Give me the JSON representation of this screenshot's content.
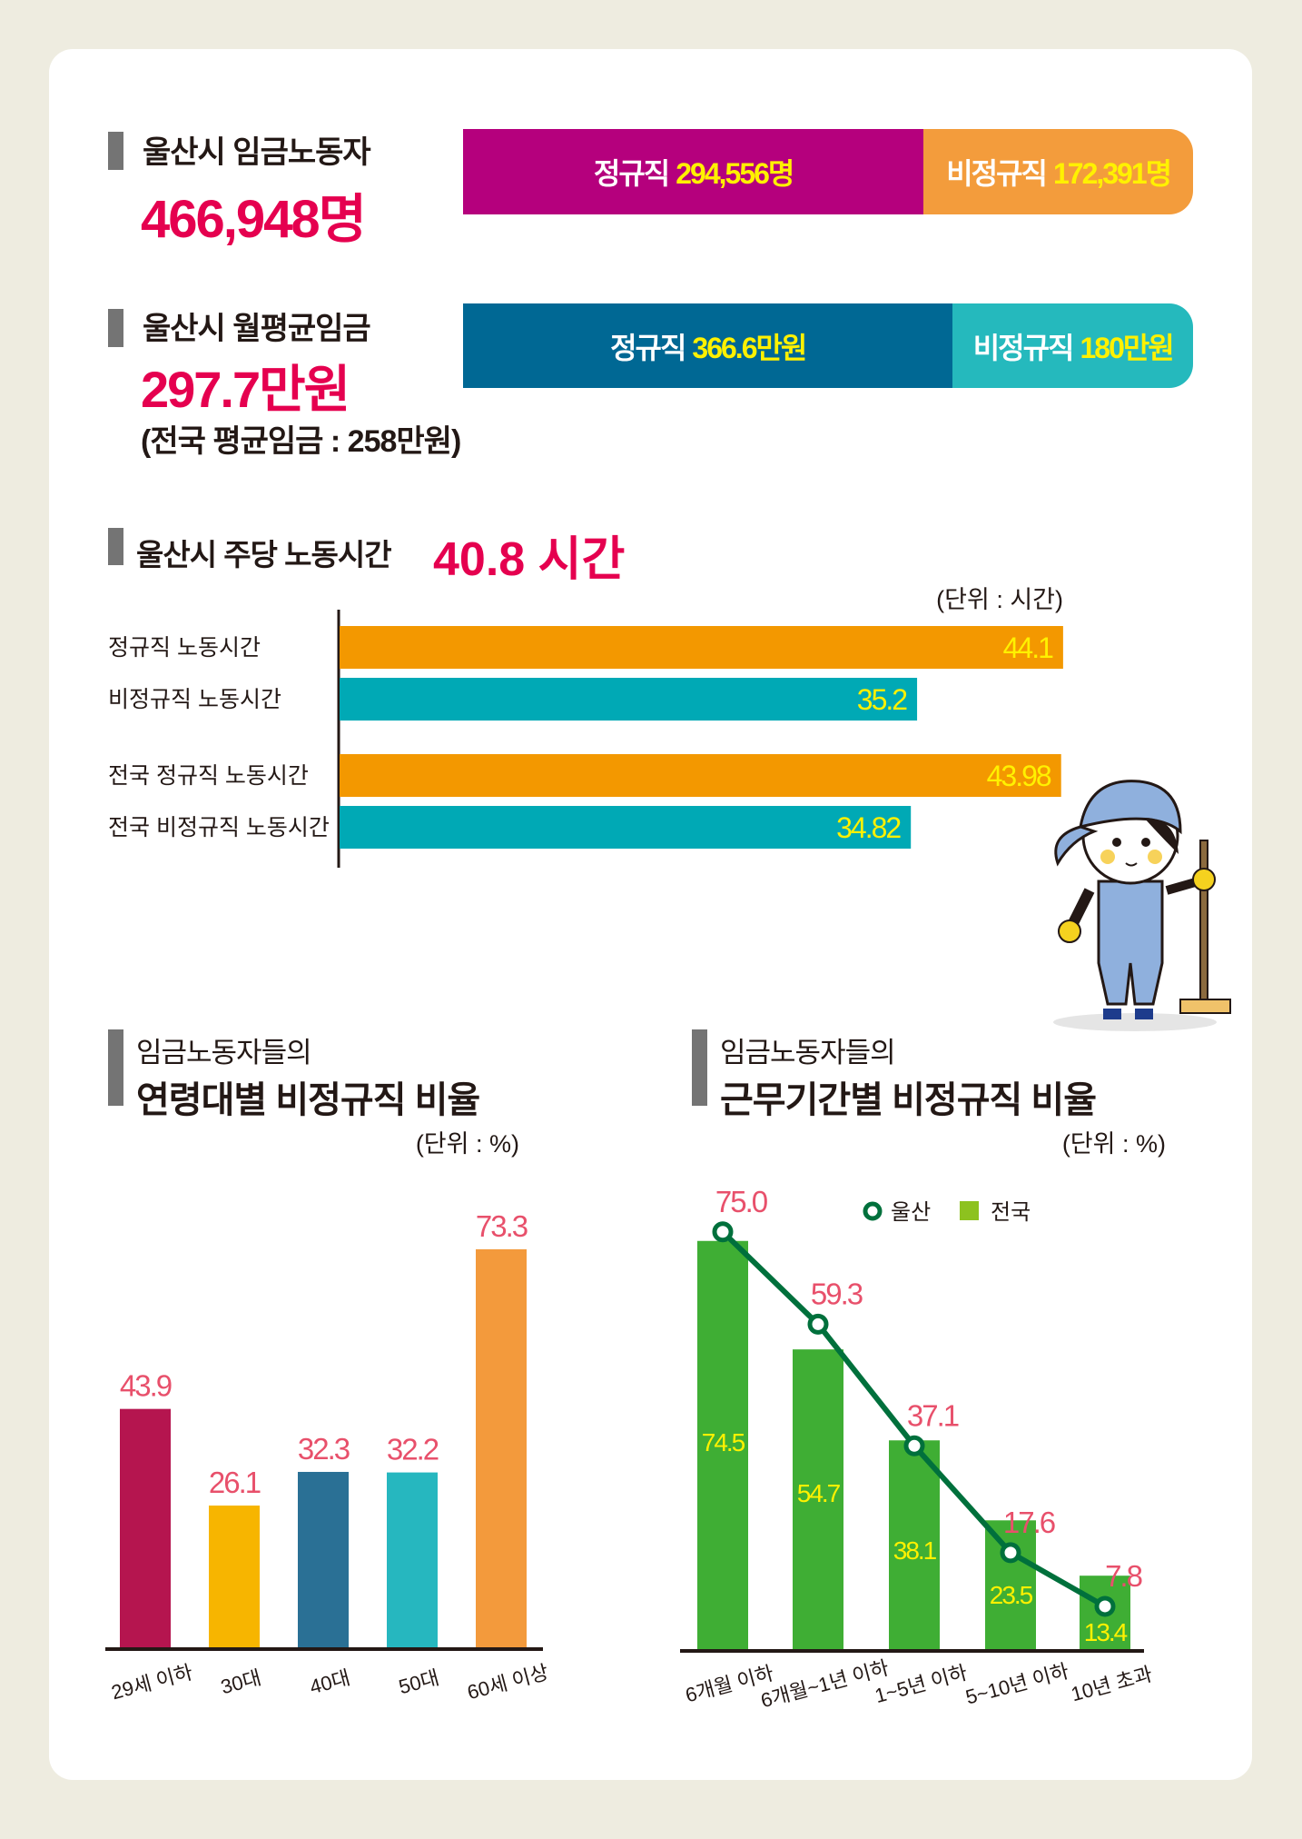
{
  "section_workers": {
    "title": "울산시 임금노동자",
    "total": "466,948명",
    "regular_label": "정규직",
    "regular_value": "294,556명",
    "nonregular_label": "비정규직",
    "nonregular_value": "172,391명",
    "regular_share": 63.1,
    "colors": {
      "regular": "#b5007d",
      "nonregular": "#f39c3c"
    }
  },
  "section_wage": {
    "title": "울산시 월평균임금",
    "total": "297.7만원",
    "national_note": "(전국 평균임금 : 258만원)",
    "regular_label": "정규직",
    "regular_value": "366.6만원",
    "nonregular_label": "비정규직",
    "nonregular_value": "180만원",
    "regular_share": 67.1,
    "colors": {
      "regular": "#006894",
      "nonregular": "#25b9bd"
    }
  },
  "section_hours": {
    "title": "울산시 주당 노동시간",
    "value": "40.8 시간",
    "unit": "(단위 : 시간)"
  },
  "section_age": {
    "title_line1": "임금노동자들의",
    "title_line2": "연령대별 비정규직 비율",
    "unit": "(단위 : %)"
  },
  "section_tenure": {
    "title_line1": "임금노동자들의",
    "title_line2": "근무기간별 비정규직 비율",
    "unit": "(단위 : %)"
  },
  "chart_data": [
    {
      "type": "bar",
      "orientation": "horizontal",
      "categories": [
        "정규직  노동시간",
        "비정규직 노동시간",
        "전국 정규직 노동시간",
        "전국 비정규직 노동시간"
      ],
      "values": [
        44.1,
        35.2,
        43.98,
        34.82
      ],
      "value_labels": [
        "44.1",
        "35.2",
        "43.98",
        "34.82"
      ],
      "colors": [
        "#f39800",
        "#00a9b5",
        "#f39800",
        "#00a9b5"
      ],
      "unit": "(단위 : 시간)"
    },
    {
      "type": "bar",
      "categories": [
        "29세 이하",
        "30대",
        "40대",
        "50대",
        "60세 이상"
      ],
      "values": [
        43.9,
        26.1,
        32.3,
        32.2,
        73.3
      ],
      "value_labels": [
        "43.9",
        "26.1",
        "32.3",
        "32.2",
        "73.3"
      ],
      "colors": [
        "#b5154f",
        "#f7b500",
        "#2a7095",
        "#26b7bf",
        "#f39a3c"
      ],
      "unit": "(단위 : %)"
    },
    {
      "type": "bar",
      "categories": [
        "6개월 이하",
        "6개월~1년 이하",
        "1~5년 이하",
        "5~10년 이하",
        "10년 초과"
      ],
      "series": [
        {
          "name": "전국",
          "type": "bar",
          "values": [
            74.5,
            54.7,
            38.1,
            23.5,
            13.4
          ],
          "value_labels": [
            "74.5",
            "54.7",
            "38.1",
            "23.5",
            "13.4"
          ],
          "color": "#3fae34"
        },
        {
          "name": "울산",
          "type": "line",
          "values": [
            75.0,
            59.3,
            37.1,
            17.6,
            7.8
          ],
          "value_labels": [
            "75.0",
            "59.3",
            "37.1",
            "17.6",
            "7.8"
          ],
          "color": "#00703c"
        }
      ],
      "legend": "top-right",
      "legend_labels": [
        "울산",
        "전국"
      ],
      "unit": "(단위 : %)"
    }
  ]
}
